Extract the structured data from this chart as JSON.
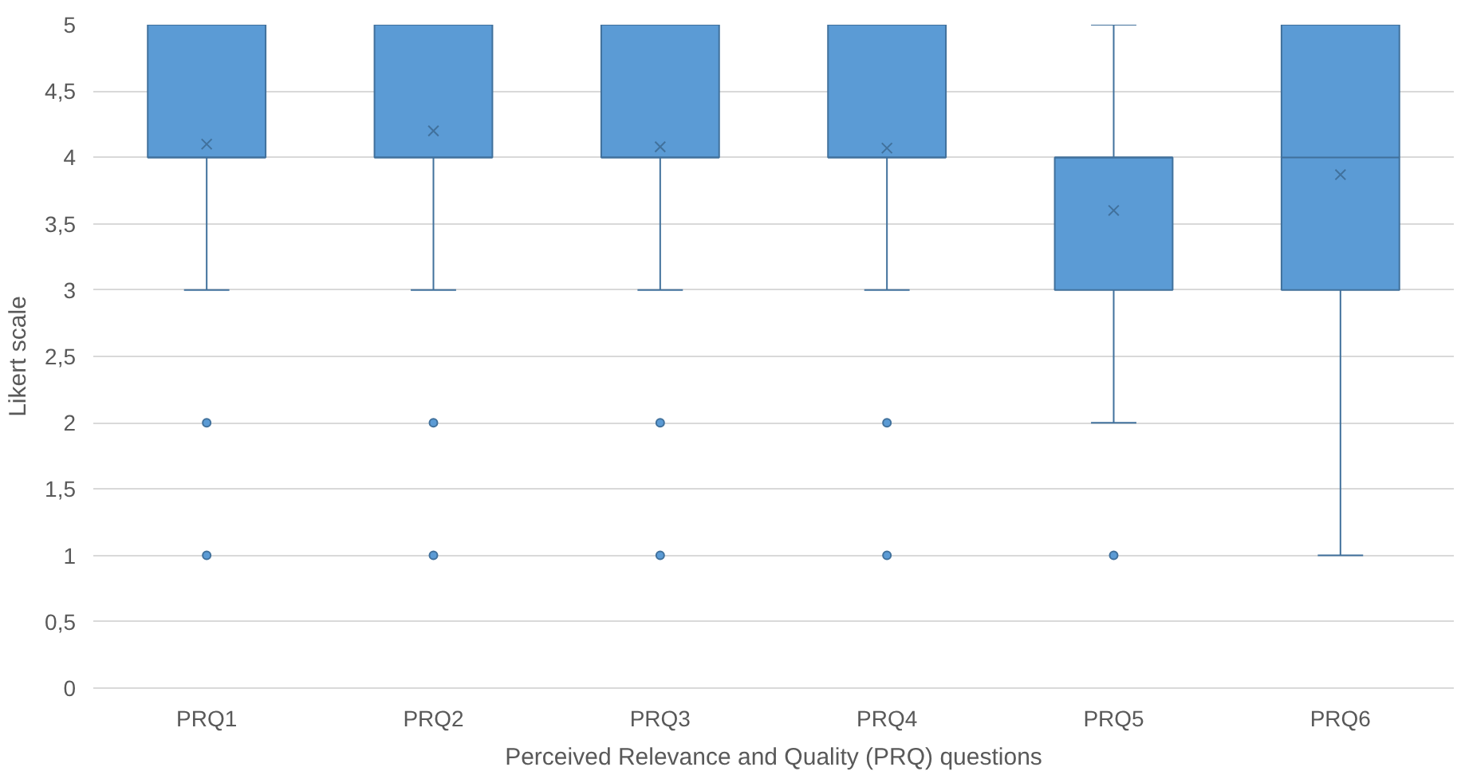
{
  "chart_data": {
    "type": "box",
    "xlabel": "Perceived Relevance and Quality (PRQ) questions",
    "ylabel": "Likert scale",
    "categories": [
      "PRQ1",
      "PRQ2",
      "PRQ3",
      "PRQ4",
      "PRQ5",
      "PRQ6"
    ],
    "boxes": [
      {
        "low": 3,
        "q1": 4,
        "median": 4,
        "q3": 5,
        "high": 5,
        "mean": 4.1,
        "outliers": [
          2,
          1
        ]
      },
      {
        "low": 3,
        "q1": 4,
        "median": 4,
        "q3": 5,
        "high": 5,
        "mean": 4.2,
        "outliers": [
          2,
          1
        ]
      },
      {
        "low": 3,
        "q1": 4,
        "median": 4,
        "q3": 5,
        "high": 5,
        "mean": 4.08,
        "outliers": [
          2,
          1
        ]
      },
      {
        "low": 3,
        "q1": 4,
        "median": 4,
        "q3": 5,
        "high": 5,
        "mean": 4.07,
        "outliers": [
          2,
          1
        ]
      },
      {
        "low": 2,
        "q1": 3,
        "median": 4,
        "q3": 4,
        "high": 5,
        "mean": 3.6,
        "outliers": [
          1
        ]
      },
      {
        "low": 1,
        "q1": 3,
        "median": 4,
        "q3": 5,
        "high": 5,
        "mean": 3.87
      }
    ],
    "color": "#5b9bd5",
    "ylim": [
      0,
      5
    ],
    "yticks": [
      0,
      {
        "value": 0.5,
        "label": "0,5"
      },
      1,
      {
        "value": 1.5,
        "label": "1,5"
      },
      2,
      {
        "value": 2.5,
        "label": "2,5"
      },
      3,
      {
        "value": 3.5,
        "label": "3,5"
      },
      4,
      {
        "value": 4.5,
        "label": "4,5"
      },
      5
    ],
    "grid": "y",
    "marker": "circle"
  }
}
